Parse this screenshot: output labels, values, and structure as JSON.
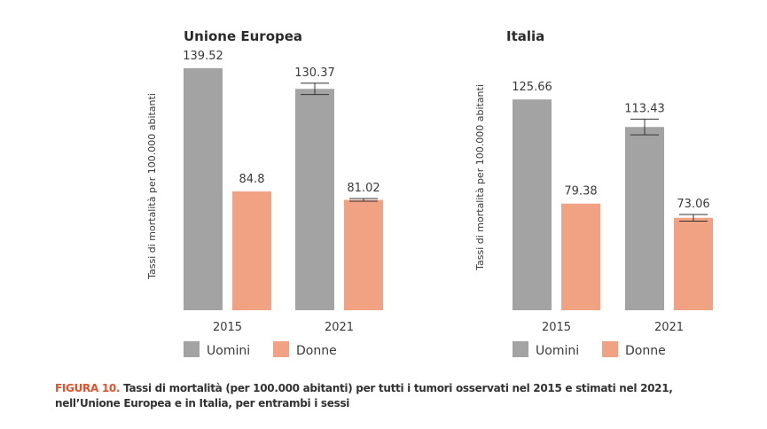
{
  "colors": {
    "uomini": "#a3a3a3",
    "donne": "#f0a283",
    "errorbar": "#333333",
    "figure_label": "#e8502a"
  },
  "chart_data": [
    {
      "type": "bar",
      "title": "Unione Europea",
      "ylabel": "Tassi di mortalità per 100.000 abitanti",
      "xlabel": "",
      "categories": [
        "2015",
        "2021"
      ],
      "ylim": [
        32,
        145
      ],
      "grid": false,
      "legend_position": "bottom",
      "series": [
        {
          "name": "Uomini",
          "values": [
            139.52,
            130.37
          ],
          "labels": [
            "139.52",
            "130.37"
          ],
          "error": [
            null,
            2.5
          ]
        },
        {
          "name": "Donne",
          "values": [
            84.8,
            81.02
          ],
          "labels": [
            "84.8",
            "81.02"
          ],
          "error": [
            null,
            0.6
          ]
        }
      ]
    },
    {
      "type": "bar",
      "title": "Italia",
      "ylabel": "Tassi di mortalità per 100.000 abitanti",
      "xlabel": "",
      "categories": [
        "2015",
        "2021"
      ],
      "ylim": [
        32,
        145
      ],
      "grid": false,
      "legend_position": "bottom",
      "series": [
        {
          "name": "Uomini",
          "values": [
            125.66,
            113.43
          ],
          "labels": [
            "125.66",
            "113.43"
          ],
          "error": [
            null,
            3.5
          ]
        },
        {
          "name": "Donne",
          "values": [
            79.38,
            73.06
          ],
          "labels": [
            "79.38",
            "73.06"
          ],
          "error": [
            null,
            1.5
          ]
        }
      ]
    }
  ],
  "caption": {
    "label": "FIGURA 10.",
    "text": "Tassi di mortalità (per 100.000 abitanti) per tutti i tumori osservati nel 2015 e stimati nel 2021, nell’Unione Europea e in Italia, per entrambi i sessi"
  }
}
